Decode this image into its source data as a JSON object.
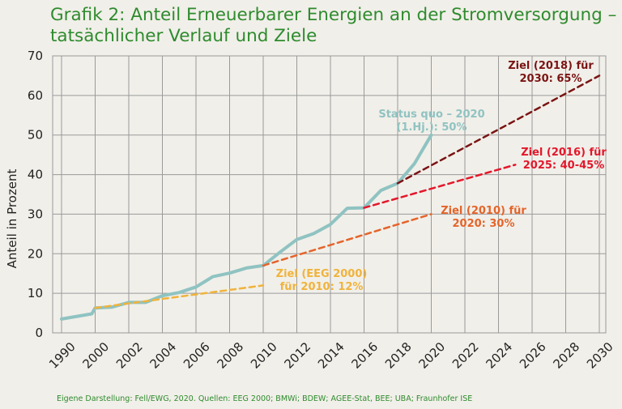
{
  "title_line1": "Grafik 2: Anteil Erneuerbarer Energien an der Stromversorgung –",
  "title_line2": "tatsächlicher Verlauf und Ziele",
  "source": "Eigene Darstellung: Fell/EWG, 2020. Quellen: EEG 2000; BMWi; BDEW; AGEE-Stat, BEE; UBA; Fraunhofer ISE",
  "colors": {
    "actual": "#8fc3c2",
    "eeg2000": "#f0b33c",
    "ziel2010": "#e4642a",
    "ziel2016": "#e3172b",
    "ziel2018": "#7a1414",
    "grid": "#9a9a9a",
    "title": "#2e8b2e"
  },
  "chart_data": {
    "type": "line",
    "ylabel": "Anteil in Prozent",
    "xlabel": "",
    "ylim": [
      0,
      70
    ],
    "yticks": [
      0,
      10,
      20,
      30,
      40,
      50,
      60,
      70
    ],
    "xtick_labels": [
      "1990",
      "2000",
      "2002",
      "2004",
      "2006",
      "2008",
      "2010",
      "2012",
      "2014",
      "2016",
      "2018",
      "2020",
      "2022",
      "2024",
      "2026",
      "2028",
      "2030"
    ],
    "grid": true,
    "series": [
      {
        "key": "actual",
        "style": "solid",
        "x": [
          "1990",
          "1999",
          "2000",
          "2001",
          "2002",
          "2003",
          "2004",
          "2005",
          "2006",
          "2007",
          "2008",
          "2009",
          "2010",
          "2011",
          "2012",
          "2013",
          "2014",
          "2015",
          "2016",
          "2017",
          "2018",
          "2019",
          "2020"
        ],
        "values": [
          3.5,
          4.8,
          6.3,
          6.5,
          7.7,
          7.7,
          9.4,
          10.2,
          11.6,
          14.2,
          15.1,
          16.4,
          17.0,
          20.4,
          23.6,
          25.1,
          27.4,
          31.5,
          31.6,
          36.0,
          37.8,
          42.8,
          50
        ]
      },
      {
        "key": "eeg2000",
        "style": "dashed",
        "x": [
          "2000",
          "2010"
        ],
        "values": [
          6.3,
          12
        ]
      },
      {
        "key": "ziel2010",
        "style": "dashed",
        "x": [
          "2010",
          "2020"
        ],
        "values": [
          17.0,
          30
        ]
      },
      {
        "key": "ziel2016",
        "style": "dashed",
        "x": [
          "2016",
          "2025"
        ],
        "values": [
          31.6,
          42.5
        ]
      },
      {
        "key": "ziel2018",
        "style": "dashed",
        "x": [
          "2018",
          "2030"
        ],
        "values": [
          37.8,
          65
        ]
      }
    ],
    "annotations": [
      {
        "key": "actual",
        "lines": [
          "Status quo – 2020",
          "(1.Hj.): 50%"
        ]
      },
      {
        "key": "ziel2018",
        "lines": [
          "Ziel (2018) für",
          "2030: 65%"
        ]
      },
      {
        "key": "ziel2016",
        "lines": [
          "Ziel (2016) für",
          "2025: 40-45%"
        ]
      },
      {
        "key": "ziel2010",
        "lines": [
          "Ziel (2010) für",
          "2020: 30%"
        ]
      },
      {
        "key": "eeg2000",
        "lines": [
          "Ziel (EEG 2000)",
          "für 2010: 12%"
        ]
      }
    ]
  }
}
